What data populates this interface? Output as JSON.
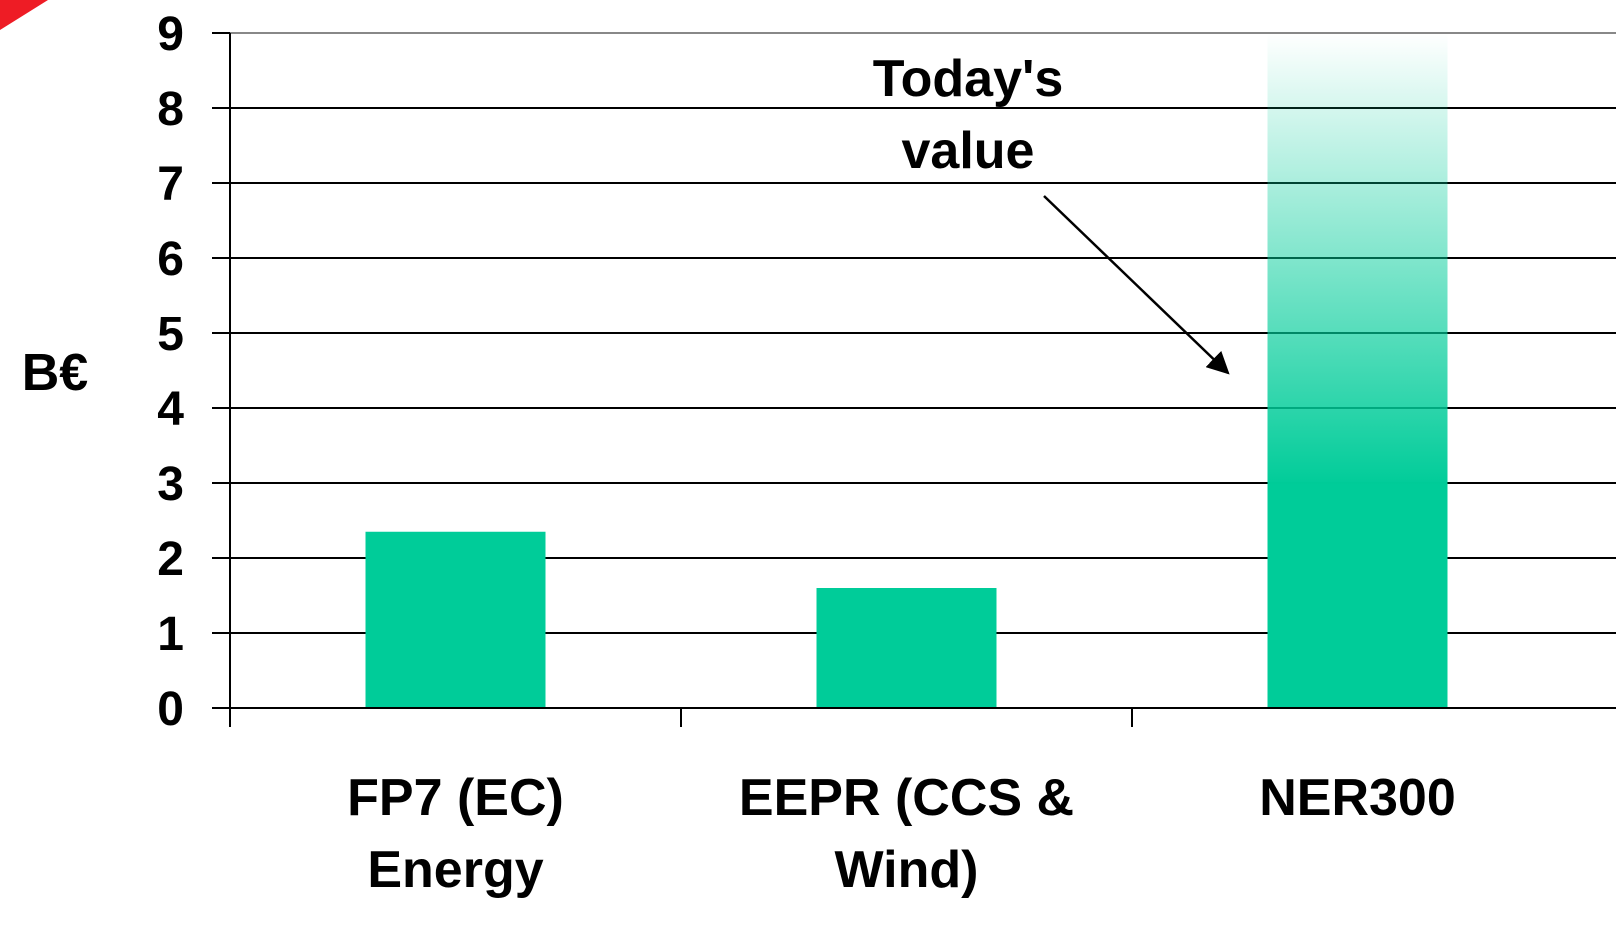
{
  "chart_data": {
    "type": "bar",
    "ylabel": "B€",
    "ylim": [
      0,
      9
    ],
    "yticks": [
      "0",
      "1",
      "2",
      "3",
      "4",
      "5",
      "6",
      "7",
      "8",
      "9"
    ],
    "categories": [
      [
        "FP7 (EC)",
        "Energy"
      ],
      [
        "EEPR (CCS &",
        "Wind)"
      ],
      [
        "NER300"
      ]
    ],
    "values": [
      2.35,
      1.6,
      9
    ],
    "bar_fill": [
      "solid",
      "solid",
      "gradient-fade-up"
    ],
    "annotation": {
      "lines": [
        "Today's",
        "value"
      ]
    },
    "grid": true,
    "legend": "none",
    "colors": {
      "bar": "#00cc99",
      "grid": "#000000",
      "corner_accent": "#ee1c25"
    }
  }
}
